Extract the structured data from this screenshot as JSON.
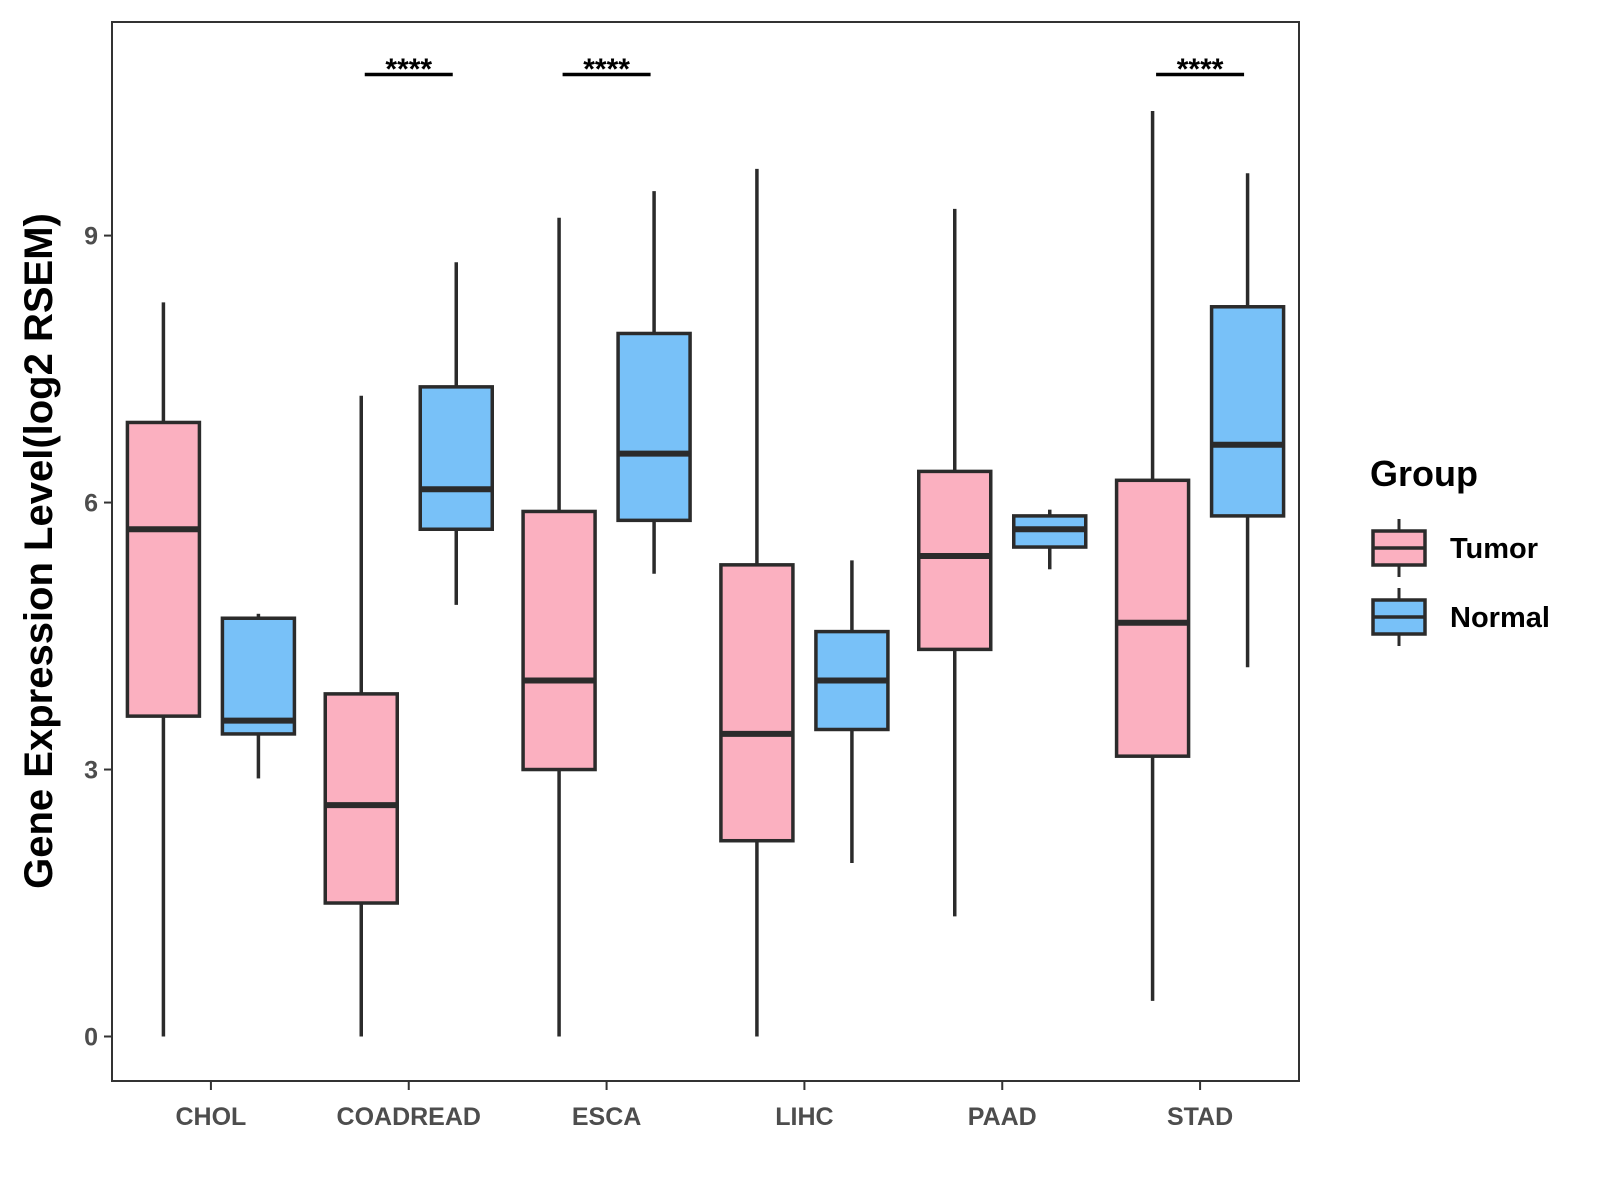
{
  "chart_data": {
    "type": "boxplot",
    "title": "",
    "xlabel": "",
    "ylabel": "Gene Expression Level(log2 RSEM)",
    "ylim": [
      -0.5,
      11.4
    ],
    "yticks": [
      "0",
      "3",
      "6",
      "9"
    ],
    "grid": false,
    "categories": [
      "CHOL",
      "COADREAD",
      "ESCA",
      "LIHC",
      "PAAD",
      "STAD"
    ],
    "series": [
      {
        "name": "Tumor",
        "color": "#fbb0c0",
        "boxes": [
          {
            "min": 0.0,
            "q1": 3.6,
            "median": 5.7,
            "q3": 6.9,
            "max": 8.25
          },
          {
            "min": 0.0,
            "q1": 1.5,
            "median": 2.6,
            "q3": 3.85,
            "max": 7.2
          },
          {
            "min": 0.0,
            "q1": 3.0,
            "median": 4.0,
            "q3": 5.9,
            "max": 9.2
          },
          {
            "min": 0.0,
            "q1": 2.2,
            "median": 3.4,
            "q3": 5.3,
            "max": 9.75
          },
          {
            "min": 1.35,
            "q1": 4.35,
            "median": 5.4,
            "q3": 6.35,
            "max": 9.3
          },
          {
            "min": 0.4,
            "q1": 3.15,
            "median": 4.65,
            "q3": 6.25,
            "max": 10.4
          }
        ]
      },
      {
        "name": "Normal",
        "color": "#78c1f8",
        "boxes": [
          {
            "min": 2.9,
            "q1": 3.4,
            "median": 3.55,
            "q3": 4.7,
            "max": 4.75
          },
          {
            "min": 4.85,
            "q1": 5.7,
            "median": 6.15,
            "q3": 7.3,
            "max": 8.7
          },
          {
            "min": 5.2,
            "q1": 5.8,
            "median": 6.55,
            "q3": 7.9,
            "max": 9.5
          },
          {
            "min": 1.95,
            "q1": 3.45,
            "median": 4.0,
            "q3": 4.55,
            "max": 5.35
          },
          {
            "min": 5.25,
            "q1": 5.5,
            "median": 5.7,
            "q3": 5.85,
            "max": 5.92
          },
          {
            "min": 4.15,
            "q1": 5.85,
            "median": 6.65,
            "q3": 8.2,
            "max": 9.7
          }
        ]
      }
    ],
    "annotations": [
      {
        "category": "COADREAD",
        "text": "****"
      },
      {
        "category": "ESCA",
        "text": "****"
      },
      {
        "category": "STAD",
        "text": "****"
      }
    ],
    "legend": {
      "title": "Group",
      "position": "right",
      "entries": [
        "Tumor",
        "Normal"
      ]
    }
  }
}
